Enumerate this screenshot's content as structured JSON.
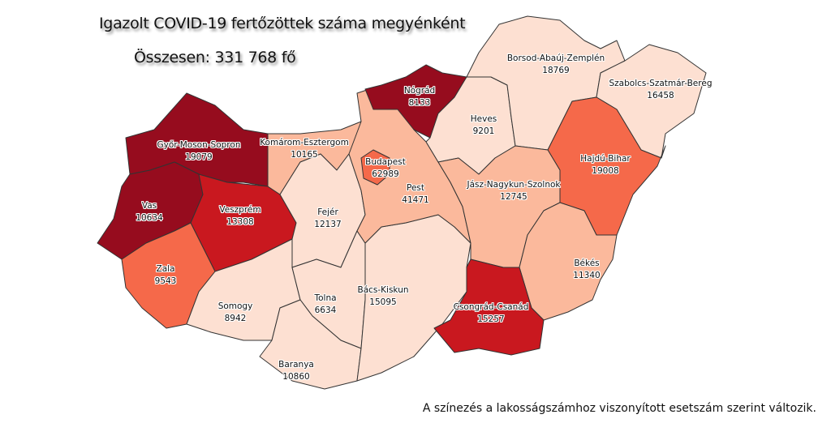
{
  "title": "Igazolt COVID-19 fertőzöttek száma megyénként",
  "total": "Összesen: 331 768 fő",
  "note": "A színezés a lakosságszámhoz viszonyított esetszám szerint változik.",
  "colors": {
    "level1": "#fde0d2",
    "level2": "#fbb99c",
    "level3": "#f5694a",
    "level4": "#c9181f",
    "level5": "#960c1e",
    "border": "#333333"
  },
  "counties": [
    {
      "name": "Győr-Moson-Sopron",
      "count": "19079",
      "level": "level5"
    },
    {
      "name": "Vas",
      "count": "10634",
      "level": "level5"
    },
    {
      "name": "Veszprém",
      "count": "13308",
      "level": "level4"
    },
    {
      "name": "Zala",
      "count": "9543",
      "level": "level3"
    },
    {
      "name": "Komárom-Esztergom",
      "count": "10165",
      "level": "level2"
    },
    {
      "name": "Fejér",
      "count": "12137",
      "level": "level1"
    },
    {
      "name": "Somogy",
      "count": "8942",
      "level": "level1"
    },
    {
      "name": "Tolna",
      "count": "6634",
      "level": "level1"
    },
    {
      "name": "Baranya",
      "count": "10860",
      "level": "level1"
    },
    {
      "name": "Bács-Kiskun",
      "count": "15095",
      "level": "level1"
    },
    {
      "name": "Pest",
      "count": "41471",
      "level": "level2"
    },
    {
      "name": "Budapest",
      "count": "62989",
      "level": "level3"
    },
    {
      "name": "Nógrád",
      "count": "8133",
      "level": "level5"
    },
    {
      "name": "Heves",
      "count": "9201",
      "level": "level1"
    },
    {
      "name": "Borsod-Abaúj-Zemplén",
      "count": "18769",
      "level": "level1"
    },
    {
      "name": "Szabolcs-Szatmár-Bereg",
      "count": "16458",
      "level": "level1"
    },
    {
      "name": "Hajdú-Bihar",
      "count": "19008",
      "level": "level3"
    },
    {
      "name": "Jász-Nagykun-Szolnok",
      "count": "12745",
      "level": "level2"
    },
    {
      "name": "Békés",
      "count": "11340",
      "level": "level2"
    },
    {
      "name": "Csongrád-Csanád",
      "count": "15257",
      "level": "level4"
    }
  ]
}
